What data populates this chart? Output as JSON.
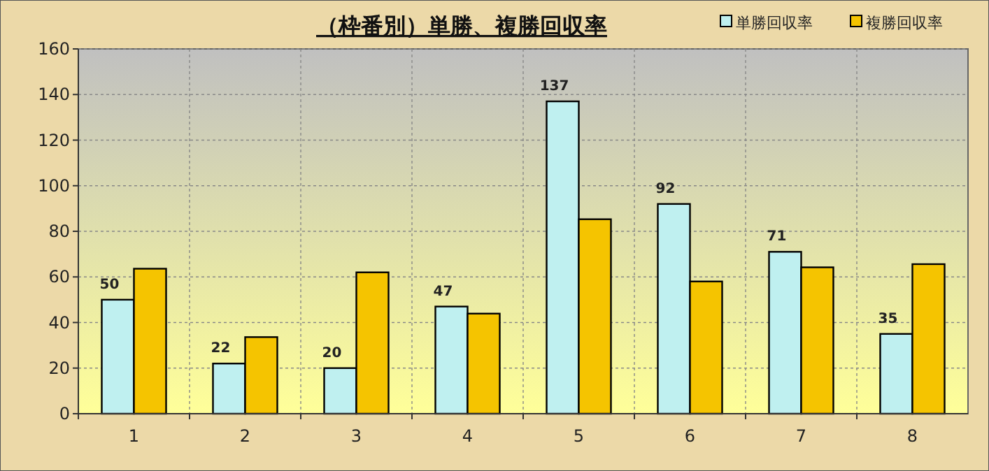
{
  "chart_data": {
    "type": "bar",
    "title": "（枠番別）単勝、複勝回収率",
    "categories": [
      "1",
      "2",
      "3",
      "4",
      "5",
      "6",
      "7",
      "8"
    ],
    "series": [
      {
        "name": "単勝回収率",
        "color": "#bff0f0",
        "values": [
          50,
          22,
          20,
          47,
          137,
          92,
          71,
          35
        ],
        "value_labels": [
          "50",
          "22",
          "20",
          "47",
          "137",
          "92",
          "71",
          "35"
        ]
      },
      {
        "name": "複勝回収率",
        "color": "#f5c400",
        "values": [
          63.6,
          33.6,
          62,
          43.9,
          85.3,
          58,
          64.2,
          65.6
        ]
      }
    ],
    "ylim": [
      0,
      160
    ],
    "yticks": [
      0,
      20,
      40,
      60,
      80,
      100,
      120,
      140,
      160
    ],
    "grid": true,
    "legend": "top right"
  }
}
